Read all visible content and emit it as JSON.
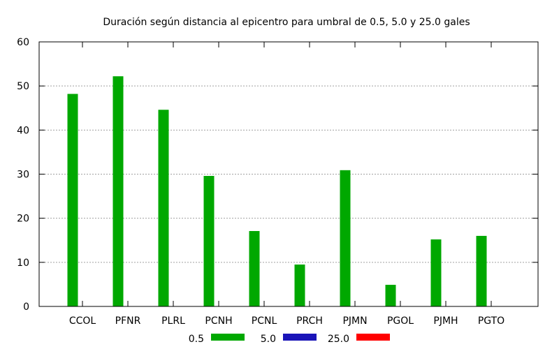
{
  "chart_data": {
    "type": "bar",
    "title": "Duración según distancia al epicentro para umbral de 0.5, 5.0 y 25.0 gales",
    "xlabel": "",
    "ylabel": "",
    "categories": [
      "CCOL",
      "PFNR",
      "PLRL",
      "PCNH",
      "PCNL",
      "PRCH",
      "PJMN",
      "PGOL",
      "PJMH",
      "PGTO"
    ],
    "ylim": [
      0,
      60
    ],
    "yticks": [
      0,
      10,
      20,
      30,
      40,
      50,
      60
    ],
    "grid": true,
    "legend_position": "bottom",
    "series": [
      {
        "name": "0.5",
        "color": "#00a800",
        "values": [
          48.2,
          52.2,
          44.6,
          29.6,
          17.1,
          9.5,
          30.9,
          4.9,
          15.2,
          16.0
        ]
      },
      {
        "name": "5.0",
        "color": "#1a14b8",
        "values": [
          0,
          0,
          0,
          0,
          0,
          0,
          0,
          0,
          0,
          0
        ]
      },
      {
        "name": "25.0",
        "color": "#ff0000",
        "values": [
          0,
          0,
          0,
          0,
          0,
          0,
          0,
          0,
          0,
          0
        ]
      }
    ]
  }
}
